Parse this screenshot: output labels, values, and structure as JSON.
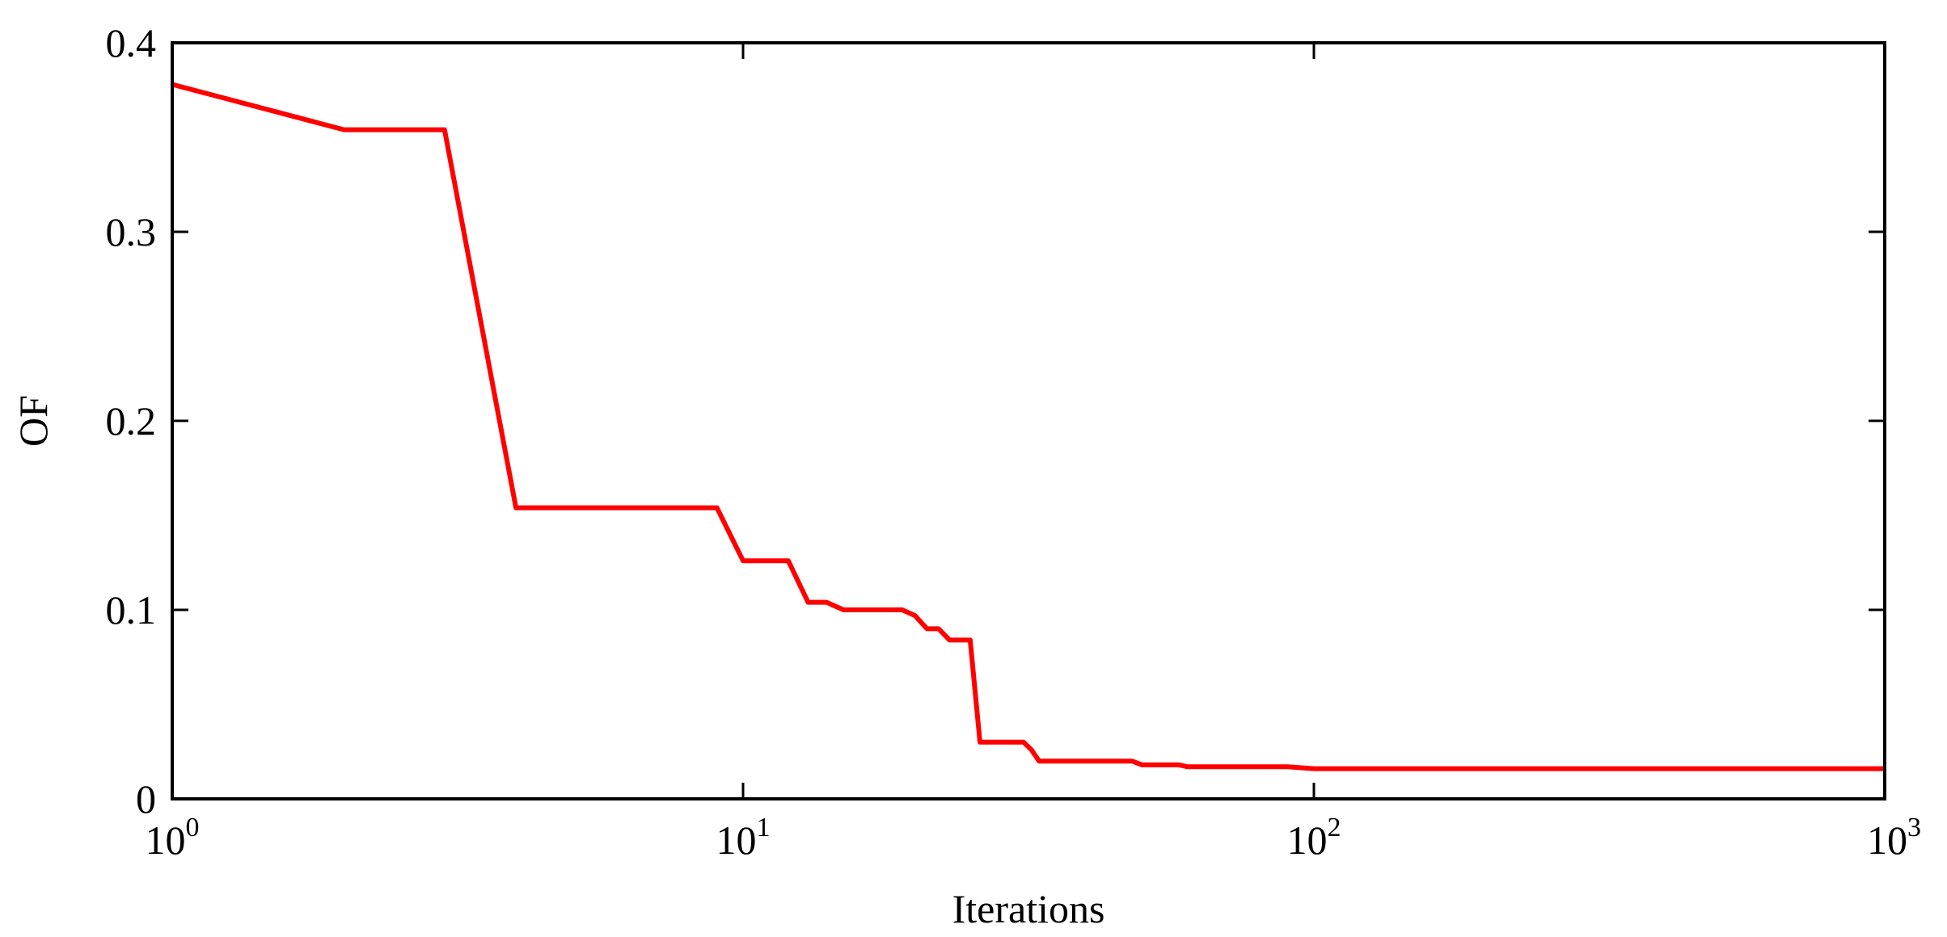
{
  "chart_data": {
    "type": "line",
    "title": "",
    "xlabel": "Iterations",
    "ylabel": "OF",
    "xscale": "log",
    "xlim": [
      1,
      1000
    ],
    "ylim": [
      0,
      0.4
    ],
    "grid": false,
    "legend": "none",
    "x_ticks": [
      {
        "value": 1,
        "base": "10",
        "exp": "0"
      },
      {
        "value": 10,
        "base": "10",
        "exp": "1"
      },
      {
        "value": 100,
        "base": "10",
        "exp": "2"
      },
      {
        "value": 1000,
        "base": "10",
        "exp": "3"
      }
    ],
    "y_ticks": [
      {
        "value": 0,
        "label": "0"
      },
      {
        "value": 0.1,
        "label": "0.1"
      },
      {
        "value": 0.2,
        "label": "0.2"
      },
      {
        "value": 0.3,
        "label": "0.3"
      },
      {
        "value": 0.4,
        "label": "0.4"
      }
    ],
    "series": [
      {
        "color": "#ff0000",
        "x": [
          1,
          2,
          3,
          4,
          9,
          10,
          12,
          13,
          14,
          15,
          19,
          20,
          21,
          22,
          23,
          25,
          26,
          31,
          32,
          33,
          48,
          50,
          58,
          60,
          90,
          100,
          330,
          1000
        ],
        "y": [
          0.378,
          0.354,
          0.354,
          0.154,
          0.154,
          0.126,
          0.126,
          0.104,
          0.104,
          0.1,
          0.1,
          0.097,
          0.09,
          0.09,
          0.084,
          0.084,
          0.03,
          0.03,
          0.026,
          0.02,
          0.02,
          0.018,
          0.018,
          0.017,
          0.017,
          0.016,
          0.016,
          0.016
        ]
      }
    ]
  }
}
